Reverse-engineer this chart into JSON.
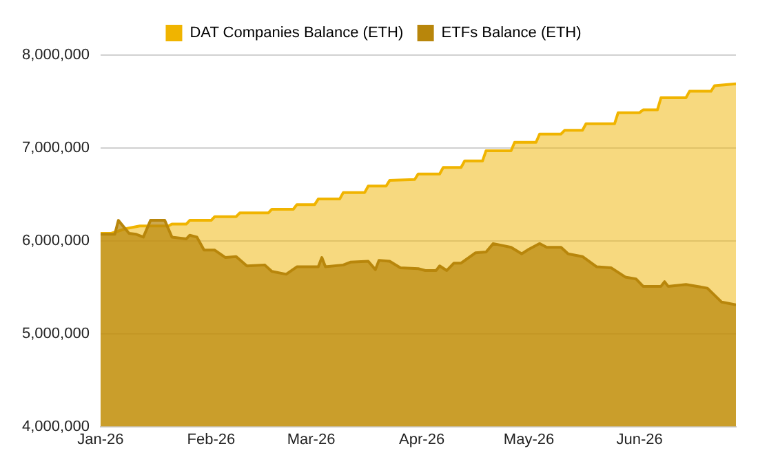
{
  "chart_data": {
    "type": "area",
    "legend": "top",
    "grid": "y",
    "ylim": [
      4000000,
      8000000
    ],
    "yticks": [
      {
        "value": 4000000,
        "label": "4,000,000"
      },
      {
        "value": 5000000,
        "label": "5,000,000"
      },
      {
        "value": 6000000,
        "label": "6,000,000"
      },
      {
        "value": 7000000,
        "label": "7,000,000"
      },
      {
        "value": 8000000,
        "label": "8,000,000"
      }
    ],
    "xlim": [
      "2026-01-01",
      "2026-06-28"
    ],
    "xticks": [
      {
        "value": "2026-01-01",
        "label": "Jan-26"
      },
      {
        "value": "2026-02-01",
        "label": "Feb-26"
      },
      {
        "value": "2026-03-01",
        "label": "Mar-26"
      },
      {
        "value": "2026-04-01",
        "label": "Apr-26"
      },
      {
        "value": "2026-05-01",
        "label": "May-26"
      },
      {
        "value": "2026-06-01",
        "label": "Jun-26"
      }
    ],
    "series": [
      {
        "name": "DAT Companies Balance (ETH)",
        "color": "#f0b400",
        "x": [
          "2026-01-01",
          "2026-01-04",
          "2026-01-08",
          "2026-01-12",
          "2026-01-20",
          "2026-01-21",
          "2026-01-25",
          "2026-01-26",
          "2026-02-01",
          "2026-02-02",
          "2026-02-08",
          "2026-02-09",
          "2026-02-17",
          "2026-02-18",
          "2026-02-24",
          "2026-02-25",
          "2026-03-02",
          "2026-03-03",
          "2026-03-09",
          "2026-03-10",
          "2026-03-16",
          "2026-03-17",
          "2026-03-22",
          "2026-03-23",
          "2026-03-30",
          "2026-03-31",
          "2026-04-06",
          "2026-04-07",
          "2026-04-12",
          "2026-04-13",
          "2026-04-18",
          "2026-04-19",
          "2026-04-26",
          "2026-04-27",
          "2026-05-03",
          "2026-05-04",
          "2026-05-10",
          "2026-05-11",
          "2026-05-16",
          "2026-05-17",
          "2026-05-25",
          "2026-05-26",
          "2026-06-01",
          "2026-06-02",
          "2026-06-06",
          "2026-06-07",
          "2026-06-14",
          "2026-06-15",
          "2026-06-21",
          "2026-06-22",
          "2026-06-28"
        ],
        "values": [
          6080000,
          6080000,
          6130000,
          6160000,
          6160000,
          6180000,
          6180000,
          6220000,
          6220000,
          6260000,
          6260000,
          6300000,
          6300000,
          6340000,
          6340000,
          6390000,
          6390000,
          6450000,
          6450000,
          6520000,
          6520000,
          6590000,
          6590000,
          6650000,
          6660000,
          6720000,
          6720000,
          6790000,
          6790000,
          6860000,
          6860000,
          6970000,
          6970000,
          7060000,
          7060000,
          7150000,
          7150000,
          7190000,
          7190000,
          7260000,
          7260000,
          7380000,
          7380000,
          7410000,
          7410000,
          7540000,
          7540000,
          7610000,
          7610000,
          7670000,
          7690000
        ]
      },
      {
        "name": "ETFs Balance (ETH)",
        "color": "#b8860b",
        "x": [
          "2026-01-01",
          "2026-01-05",
          "2026-01-06",
          "2026-01-09",
          "2026-01-11",
          "2026-01-13",
          "2026-01-15",
          "2026-01-19",
          "2026-01-21",
          "2026-01-25",
          "2026-01-26",
          "2026-01-28",
          "2026-01-30",
          "2026-02-02",
          "2026-02-05",
          "2026-02-08",
          "2026-02-11",
          "2026-02-16",
          "2026-02-18",
          "2026-02-22",
          "2026-02-25",
          "2026-03-03",
          "2026-03-04",
          "2026-03-05",
          "2026-03-10",
          "2026-03-12",
          "2026-03-17",
          "2026-03-19",
          "2026-03-20",
          "2026-03-23",
          "2026-03-26",
          "2026-03-31",
          "2026-04-02",
          "2026-04-05",
          "2026-04-06",
          "2026-04-08",
          "2026-04-10",
          "2026-04-12",
          "2026-04-16",
          "2026-04-19",
          "2026-04-21",
          "2026-04-26",
          "2026-04-29",
          "2026-05-01",
          "2026-05-04",
          "2026-05-06",
          "2026-05-10",
          "2026-05-12",
          "2026-05-16",
          "2026-05-20",
          "2026-05-24",
          "2026-05-28",
          "2026-05-31",
          "2026-06-02",
          "2026-06-07",
          "2026-06-08",
          "2026-06-09",
          "2026-06-14",
          "2026-06-20",
          "2026-06-24",
          "2026-06-28"
        ],
        "values": [
          6070000,
          6070000,
          6220000,
          6080000,
          6070000,
          6040000,
          6220000,
          6220000,
          6040000,
          6020000,
          6060000,
          6040000,
          5900000,
          5900000,
          5820000,
          5830000,
          5730000,
          5740000,
          5670000,
          5640000,
          5720000,
          5720000,
          5820000,
          5720000,
          5740000,
          5770000,
          5780000,
          5690000,
          5790000,
          5780000,
          5710000,
          5700000,
          5680000,
          5680000,
          5730000,
          5680000,
          5760000,
          5760000,
          5870000,
          5880000,
          5970000,
          5930000,
          5860000,
          5910000,
          5970000,
          5930000,
          5930000,
          5860000,
          5830000,
          5720000,
          5710000,
          5610000,
          5590000,
          5510000,
          5510000,
          5560000,
          5510000,
          5530000,
          5490000,
          5340000,
          5310000
        ]
      }
    ]
  }
}
